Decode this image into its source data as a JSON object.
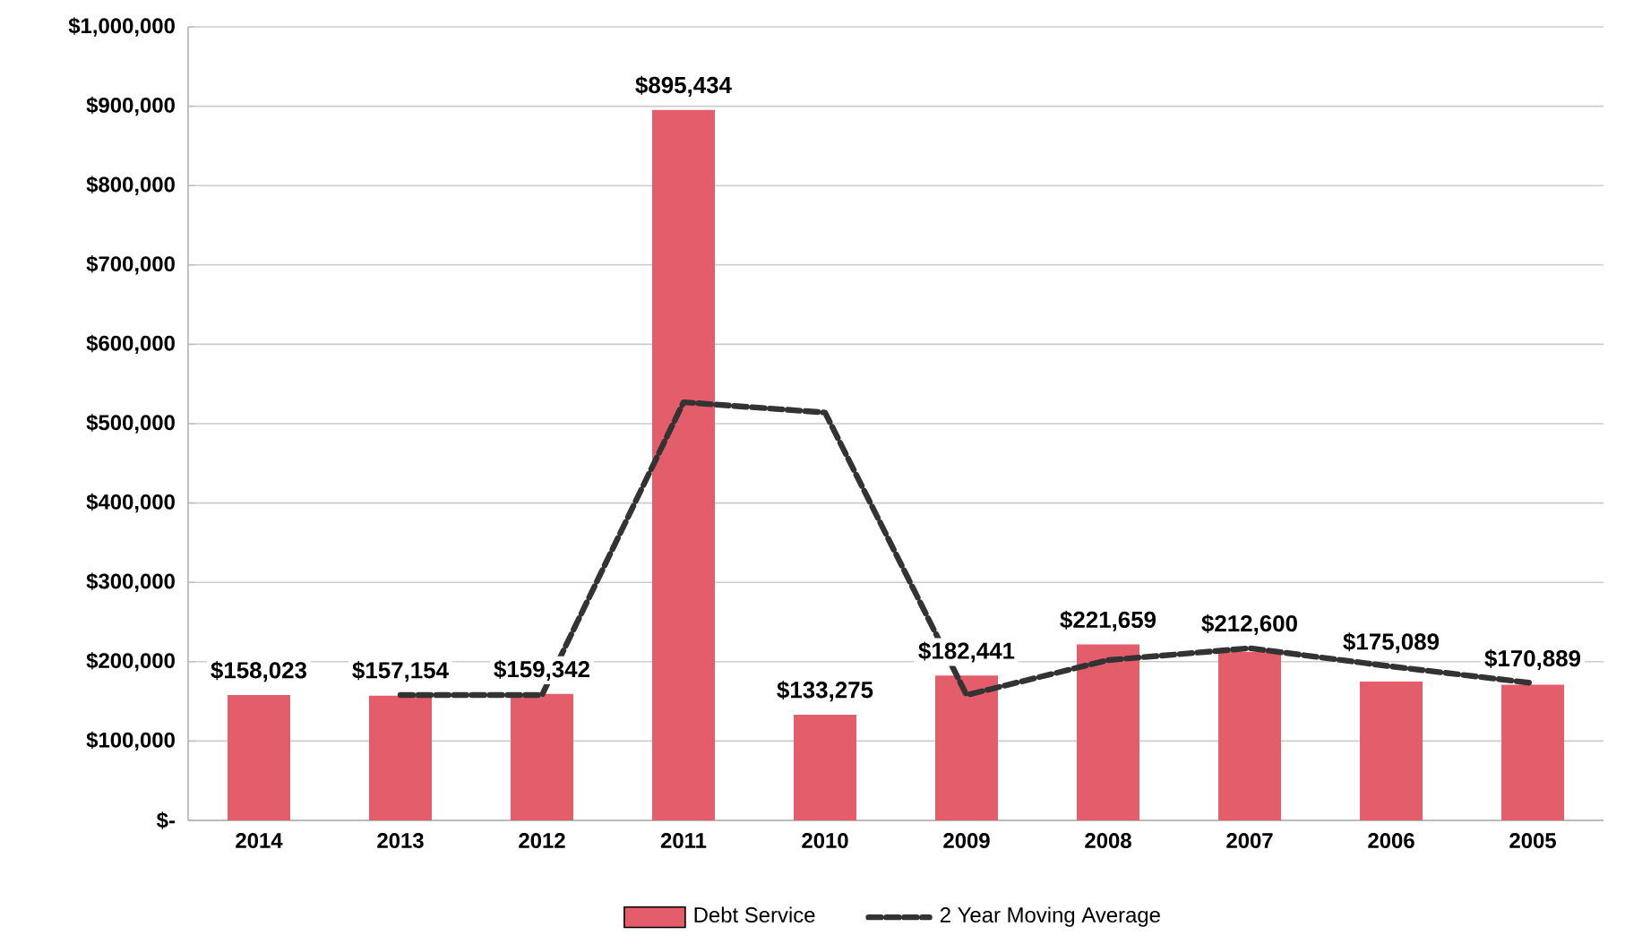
{
  "chart_data": {
    "type": "bar",
    "categories": [
      "2014",
      "2013",
      "2012",
      "2011",
      "2010",
      "2009",
      "2008",
      "2007",
      "2006",
      "2005"
    ],
    "series": [
      {
        "name": "Debt Service",
        "color": "#e35d6a",
        "values": [
          158023,
          157154,
          159342,
          895434,
          133275,
          182441,
          221659,
          212600,
          175089,
          170889
        ],
        "value_labels": [
          "$158,023",
          "$157,154",
          "$159,342",
          "$895,434",
          "$133,275",
          "$182,441",
          "$221,659",
          "$212,600",
          "$175,089",
          "$170,889"
        ]
      },
      {
        "name": "2 Year Moving Average",
        "type": "line",
        "color": "#333333",
        "line_style": "dashed",
        "values": [
          null,
          158000,
          158000,
          527000,
          514000,
          158000,
          202000,
          217000,
          194000,
          173000
        ]
      }
    ],
    "ylim": [
      0,
      1000000
    ],
    "yticks": [
      {
        "value": 0,
        "label": "$-"
      },
      {
        "value": 100000,
        "label": "$100,000"
      },
      {
        "value": 200000,
        "label": "$200,000"
      },
      {
        "value": 300000,
        "label": "$300,000"
      },
      {
        "value": 400000,
        "label": "$400,000"
      },
      {
        "value": 500000,
        "label": "$500,000"
      },
      {
        "value": 600000,
        "label": "$600,000"
      },
      {
        "value": 700000,
        "label": "$700,000"
      },
      {
        "value": 800000,
        "label": "$800,000"
      },
      {
        "value": 900000,
        "label": "$900,000"
      },
      {
        "value": 1000000,
        "label": "$1,000,000"
      }
    ],
    "grid": "y",
    "legend": "bottom"
  }
}
